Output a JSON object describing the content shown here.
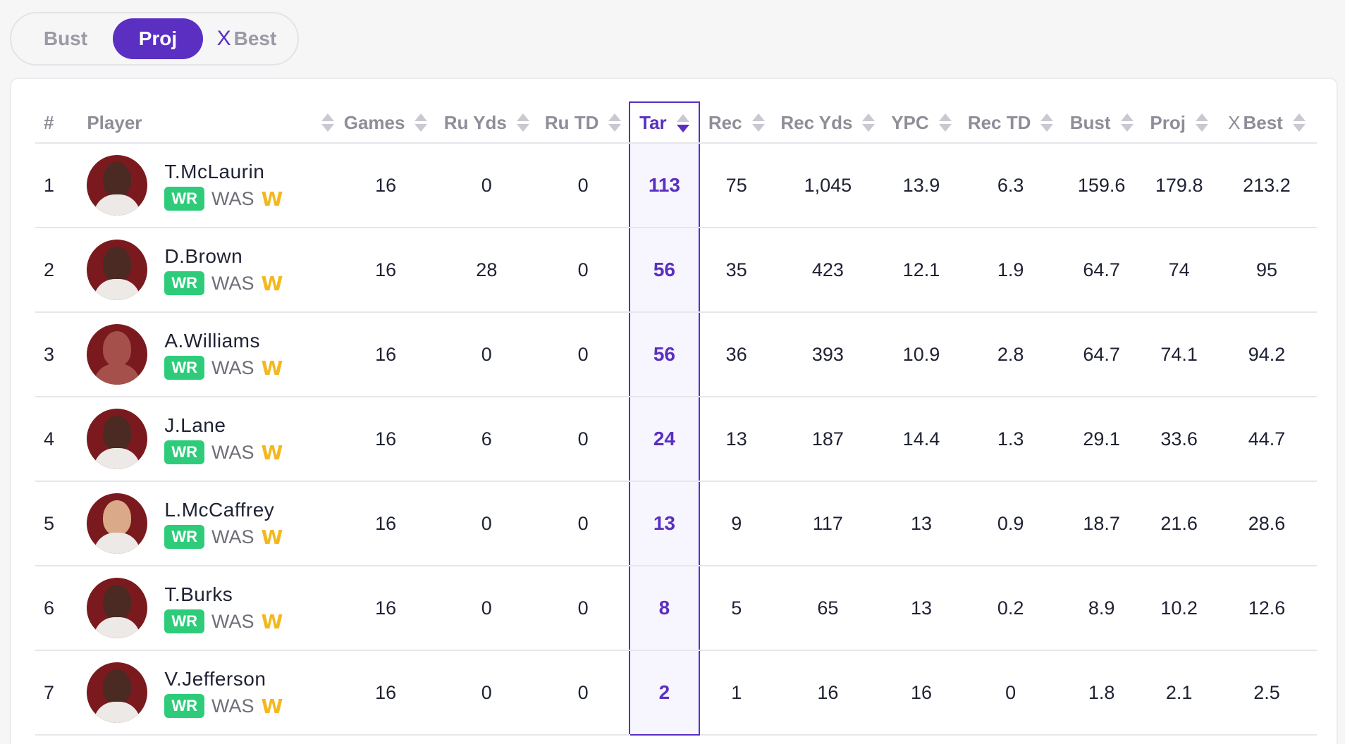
{
  "toggle": {
    "options": [
      "Bust",
      "Proj",
      "Best"
    ],
    "selected": "Proj",
    "xmark": "X"
  },
  "columns": [
    "#",
    "Player",
    "Games",
    "Ru Yds",
    "Ru TD",
    "Tar",
    "Rec",
    "Rec Yds",
    "YPC",
    "Rec TD",
    "Bust",
    "Proj",
    "Best"
  ],
  "columns_xmark": "X",
  "sorted_column": "Tar",
  "sort_direction": "descending",
  "colors": {
    "accent": "#5a2fc2",
    "position_badge": "#2ecc7a",
    "team_logo": "#f2b81e",
    "avatar_bg": "#7b1a1e"
  },
  "rows": [
    {
      "rank": "1",
      "name": "T.McLaurin",
      "pos": "WR",
      "team": "WAS",
      "logo": "W",
      "games": "16",
      "ru_yds": "0",
      "ru_td": "0",
      "tar": "113",
      "rec": "75",
      "rec_yds": "1,045",
      "ypc": "13.9",
      "rec_td": "6.3",
      "bust": "159.6",
      "proj": "179.8",
      "best": "213.2"
    },
    {
      "rank": "2",
      "name": "D.Brown",
      "pos": "WR",
      "team": "WAS",
      "logo": "W",
      "games": "16",
      "ru_yds": "28",
      "ru_td": "0",
      "tar": "56",
      "rec": "35",
      "rec_yds": "423",
      "ypc": "12.1",
      "rec_td": "1.9",
      "bust": "64.7",
      "proj": "74",
      "best": "95"
    },
    {
      "rank": "3",
      "name": "A.Williams",
      "pos": "WR",
      "team": "WAS",
      "logo": "W",
      "games": "16",
      "ru_yds": "0",
      "ru_td": "0",
      "tar": "56",
      "rec": "36",
      "rec_yds": "393",
      "ypc": "10.9",
      "rec_td": "2.8",
      "bust": "64.7",
      "proj": "74.1",
      "best": "94.2"
    },
    {
      "rank": "4",
      "name": "J.Lane",
      "pos": "WR",
      "team": "WAS",
      "logo": "W",
      "games": "16",
      "ru_yds": "6",
      "ru_td": "0",
      "tar": "24",
      "rec": "13",
      "rec_yds": "187",
      "ypc": "14.4",
      "rec_td": "1.3",
      "bust": "29.1",
      "proj": "33.6",
      "best": "44.7"
    },
    {
      "rank": "5",
      "name": "L.McCaffrey",
      "pos": "WR",
      "team": "WAS",
      "logo": "W",
      "games": "16",
      "ru_yds": "0",
      "ru_td": "0",
      "tar": "13",
      "rec": "9",
      "rec_yds": "117",
      "ypc": "13",
      "rec_td": "0.9",
      "bust": "18.7",
      "proj": "21.6",
      "best": "28.6"
    },
    {
      "rank": "6",
      "name": "T.Burks",
      "pos": "WR",
      "team": "WAS",
      "logo": "W",
      "games": "16",
      "ru_yds": "0",
      "ru_td": "0",
      "tar": "8",
      "rec": "5",
      "rec_yds": "65",
      "ypc": "13",
      "rec_td": "0.2",
      "bust": "8.9",
      "proj": "10.2",
      "best": "12.6"
    },
    {
      "rank": "7",
      "name": "V.Jefferson",
      "pos": "WR",
      "team": "WAS",
      "logo": "W",
      "games": "16",
      "ru_yds": "0",
      "ru_td": "0",
      "tar": "2",
      "rec": "1",
      "rec_yds": "16",
      "ypc": "16",
      "rec_td": "0",
      "bust": "1.8",
      "proj": "2.1",
      "best": "2.5"
    }
  ]
}
